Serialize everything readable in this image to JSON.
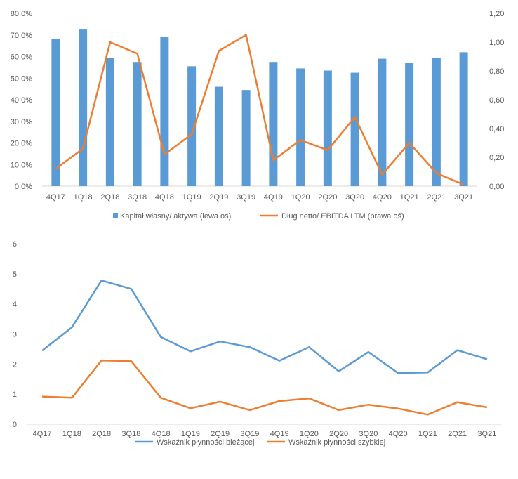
{
  "colors": {
    "blue": "#5b9bd5",
    "orange": "#ed7d31",
    "text": "#595959",
    "axis": "#d9d9d9"
  },
  "chart_data": [
    {
      "type": "bar",
      "categories": [
        "4Q17",
        "1Q18",
        "2Q18",
        "3Q18",
        "4Q18",
        "1Q19",
        "2Q19",
        "3Q19",
        "4Q19",
        "1Q20",
        "2Q20",
        "3Q20",
        "4Q20",
        "1Q21",
        "2Q21",
        "3Q21"
      ],
      "series": [
        {
          "name": "Kapitał własny/ aktywa (lewa oś)",
          "type": "bar",
          "axis": "left",
          "values": [
            68.0,
            72.5,
            59.5,
            57.5,
            69.0,
            55.5,
            46.0,
            44.5,
            57.5,
            54.5,
            53.5,
            52.5,
            59.0,
            57.0,
            59.5,
            62.0
          ]
        },
        {
          "name": "Dług netto/ EBITDA LTM (prawa oś)",
          "type": "line",
          "axis": "right",
          "values": [
            0.12,
            0.26,
            1.0,
            0.92,
            0.22,
            0.36,
            0.94,
            1.05,
            0.18,
            0.32,
            0.25,
            0.48,
            0.08,
            0.3,
            0.09,
            0.01
          ]
        }
      ],
      "left_axis": {
        "ylim": [
          0,
          80
        ],
        "ticks": [
          "0,0%",
          "10,0%",
          "20,0%",
          "30,0%",
          "40,0%",
          "50,0%",
          "60,0%",
          "70,0%",
          "80,0%"
        ]
      },
      "right_axis": {
        "ylim": [
          0,
          1.2
        ],
        "ticks": [
          "0,00",
          "0,20",
          "0,40",
          "0,60",
          "0,80",
          "1,00",
          "1,20"
        ]
      },
      "legend_position": "bottom",
      "grid": false
    },
    {
      "type": "line",
      "categories": [
        "4Q17",
        "1Q18",
        "2Q18",
        "3Q18",
        "4Q18",
        "1Q19",
        "2Q19",
        "3Q19",
        "4Q19",
        "1Q20",
        "2Q20",
        "3Q20",
        "4Q20",
        "1Q21",
        "2Q21",
        "3Q21"
      ],
      "series": [
        {
          "name": "Wskaźnik płynności bieżącej",
          "values": [
            2.45,
            3.22,
            4.78,
            4.5,
            2.9,
            2.42,
            2.75,
            2.56,
            2.11,
            2.56,
            1.76,
            2.4,
            1.7,
            1.72,
            2.46,
            2.16
          ]
        },
        {
          "name": "Wskaźnik płynności szybkiej",
          "values": [
            0.92,
            0.88,
            2.12,
            2.1,
            0.88,
            0.53,
            0.75,
            0.47,
            0.77,
            0.86,
            0.47,
            0.65,
            0.52,
            0.32,
            0.73,
            0.56
          ]
        }
      ],
      "ylim": [
        0,
        6
      ],
      "ticks": [
        "0",
        "1",
        "2",
        "3",
        "4",
        "5",
        "6"
      ],
      "legend_position": "bottom",
      "grid": false
    }
  ]
}
